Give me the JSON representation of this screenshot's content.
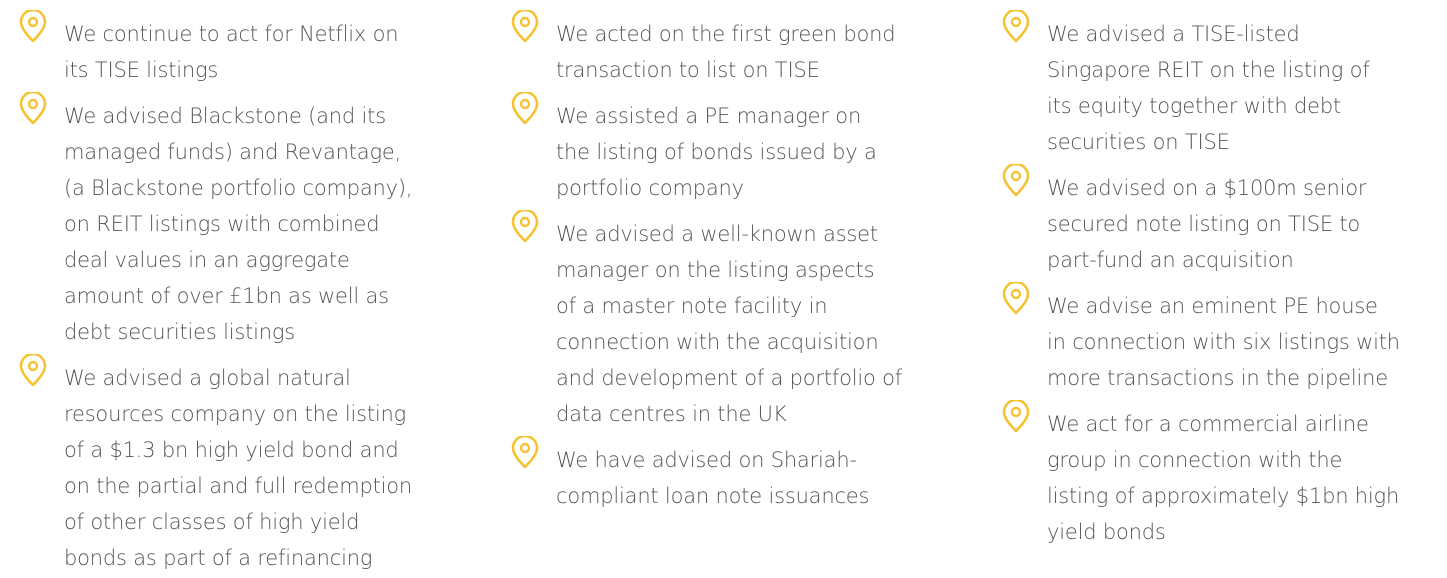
{
  "columns": [
    {
      "items": [
        {
          "lines": [
            "We continue to act for Netflix on",
            "its TISE listings"
          ]
        },
        {
          "lines": [
            "We advised Blackstone (and its",
            "managed funds) and Revantage,",
            "(a Blackstone portfolio company),",
            "on REIT listings with combined",
            "deal values in an aggregate",
            "amount of over £1bn as well as",
            "debt securities listings"
          ]
        },
        {
          "lines": [
            "We advised a global natural",
            "resources company on the listing",
            "of a $1.3 bn high yield bond and",
            "on the partial and full redemption",
            "of other classes of high yield",
            "bonds as part of a refinancing"
          ]
        }
      ]
    },
    {
      "items": [
        {
          "lines": [
            "We acted on the first green bond",
            "transaction to list on TISE"
          ]
        },
        {
          "lines": [
            "We assisted a PE manager on",
            "the listing of bonds issued by a",
            "portfolio company"
          ]
        },
        {
          "lines": [
            "We advised a well-known asset",
            "manager on the listing aspects",
            "of a master note facility in",
            "connection with the acquisition",
            "and development of a portfolio of",
            "data centres in the UK"
          ]
        },
        {
          "lines": [
            "We have advised on Shariah-",
            "compliant loan note issuances"
          ]
        }
      ]
    },
    {
      "items": [
        {
          "lines": [
            "We advised a TISE-listed",
            "Singapore REIT on the listing of",
            "its equity together with debt",
            "securities on TISE"
          ]
        },
        {
          "lines": [
            "We advised on a $100m senior",
            "secured note listing on TISE to",
            "part-fund an acquisition"
          ]
        },
        {
          "lines": [
            "We advise an eminent PE house",
            "in connection with six listings with",
            "more transactions in the pipeline"
          ]
        },
        {
          "lines": [
            "We act for a commercial airline",
            "group in connection with the",
            "listing of approximately $1bn high",
            "yield bonds"
          ]
        }
      ]
    }
  ]
}
